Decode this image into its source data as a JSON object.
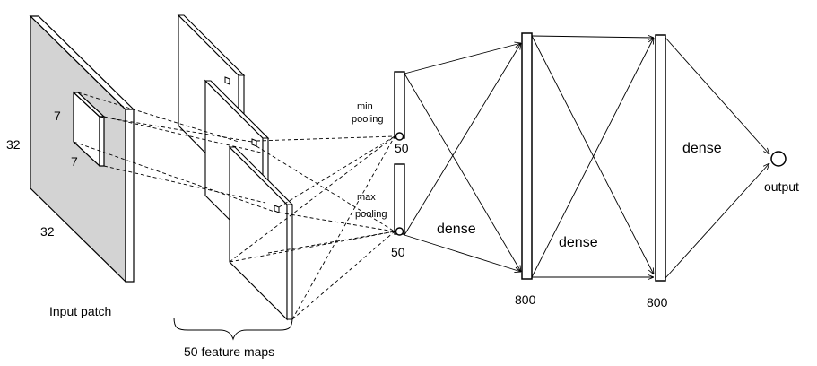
{
  "diagram": {
    "input": {
      "size_side": "32",
      "size_bottom": "32",
      "kernel_h": "7",
      "kernel_w": "7",
      "caption": "Input patch"
    },
    "feature_maps": {
      "caption": "50 feature maps"
    },
    "pooling": {
      "min_label_line1": "min",
      "min_label_line2": "pooling",
      "min_size": "50",
      "max_label_line1": "max",
      "max_label_line2": "pooling",
      "max_size": "50"
    },
    "layers": {
      "dense1_label": "dense",
      "hidden1_size": "800",
      "dense2_label": "dense",
      "hidden2_size": "800",
      "dense3_label": "dense",
      "output_label": "output"
    }
  }
}
